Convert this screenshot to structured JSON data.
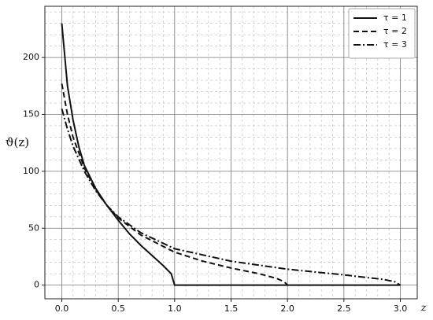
{
  "chart_data": {
    "type": "line",
    "ylabel": "ϑ(z)",
    "xlabel": "z",
    "xlim": [
      -0.15,
      3.15
    ],
    "ylim": [
      -12,
      245
    ],
    "xticks": [
      {
        "value": 0,
        "label": "0.0"
      },
      0.5,
      {
        "value": 1,
        "label": "1.0"
      },
      1.5,
      {
        "value": 2,
        "label": "2.0"
      },
      2.5,
      {
        "value": 3,
        "label": "3.0"
      }
    ],
    "yticks": [
      0,
      50,
      100,
      150,
      200
    ],
    "minor_xticks": [
      0.1,
      0.2,
      0.3,
      0.4,
      0.6,
      0.7,
      0.8,
      0.9,
      1.1,
      1.2,
      1.3,
      1.4,
      1.6,
      1.7,
      1.8,
      1.9,
      2.1,
      2.2,
      2.3,
      2.4,
      2.6,
      2.7,
      2.8,
      2.9
    ],
    "minor_yticks": [
      10,
      20,
      30,
      40,
      60,
      70,
      80,
      90,
      110,
      120,
      130,
      140,
      160,
      170,
      180,
      190,
      210,
      220,
      230,
      240
    ],
    "grid": true,
    "legend": "upper right",
    "series": [
      {
        "name": "τ = 1",
        "color": "#111111",
        "dash": "none",
        "x": [
          0,
          0.05,
          0.1,
          0.15,
          0.2,
          0.3,
          0.4,
          0.5,
          0.6,
          0.7,
          0.8,
          0.9,
          0.97,
          1.0,
          3.0
        ],
        "values": [
          230,
          175,
          145,
          122,
          105,
          85,
          70,
          57,
          45,
          35,
          26,
          17,
          10,
          0,
          0
        ]
      },
      {
        "name": "τ = 2",
        "color": "#111111",
        "dash": "7,4",
        "x": [
          0,
          0.05,
          0.1,
          0.2,
          0.3,
          0.4,
          0.5,
          0.7,
          1.0,
          1.25,
          1.5,
          1.75,
          1.9,
          1.97,
          2.0
        ],
        "values": [
          177,
          150,
          130,
          103,
          84,
          70,
          59,
          44,
          29,
          21,
          15,
          10,
          6,
          3,
          0
        ]
      },
      {
        "name": "τ = 3",
        "color": "#111111",
        "dash": "9,3,2,3",
        "x": [
          0,
          0.05,
          0.1,
          0.2,
          0.3,
          0.4,
          0.5,
          0.7,
          1.0,
          1.5,
          2.0,
          2.5,
          2.85,
          2.95,
          3.0
        ],
        "values": [
          155,
          137,
          122,
          100,
          83,
          70,
          60,
          46,
          32,
          21,
          14,
          9,
          5,
          3,
          0
        ]
      }
    ]
  }
}
